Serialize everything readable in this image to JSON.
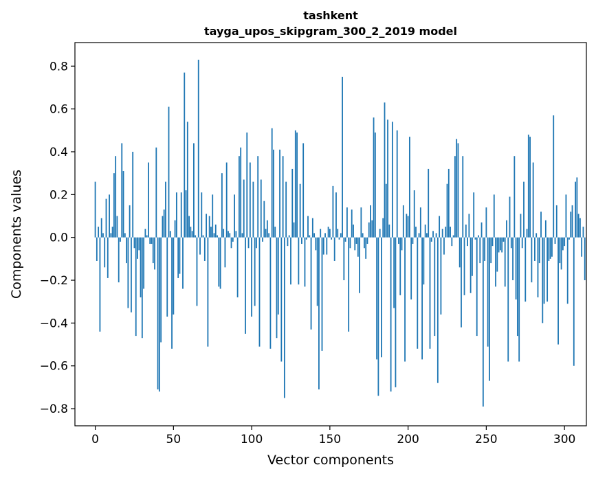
{
  "chart_data": {
    "type": "bar",
    "title": "tashkent",
    "subtitle": "tayga_upos_skipgram_300_2_2019 model",
    "xlabel": "Vector components",
    "ylabel": "Components values",
    "xlim": [
      -13,
      314
    ],
    "ylim": [
      -0.88,
      0.91
    ],
    "xticks": [
      0,
      50,
      100,
      150,
      200,
      250,
      300
    ],
    "xtick_labels": [
      "0",
      "50",
      "100",
      "150",
      "200",
      "250",
      "300"
    ],
    "yticks": [
      -0.8,
      -0.6,
      -0.4,
      -0.2,
      0.0,
      0.2,
      0.4,
      0.6,
      0.8
    ],
    "ytick_labels": [
      "−0.8",
      "−0.6",
      "−0.4",
      "−0.2",
      "0.0",
      "0.2",
      "0.4",
      "0.6",
      "0.8"
    ],
    "grid": false,
    "bar_color": "#1f77b4",
    "series": [
      {
        "values": [
          0.26,
          -0.11,
          0.05,
          -0.44,
          0.09,
          0.02,
          -0.14,
          0.18,
          -0.19,
          0.2,
          0.02,
          0.05,
          0.3,
          0.38,
          0.1,
          -0.21,
          -0.02,
          0.44,
          0.31,
          0.02,
          -0.12,
          -0.33,
          0.15,
          -0.35,
          0.4,
          -0.05,
          -0.46,
          -0.1,
          -0.06,
          -0.28,
          -0.47,
          -0.24,
          0.04,
          0.01,
          0.35,
          -0.03,
          -0.03,
          -0.12,
          -0.15,
          0.42,
          -0.71,
          -0.72,
          -0.49,
          0.1,
          0.13,
          0.26,
          -0.37,
          0.61,
          0.03,
          -0.52,
          -0.36,
          0.08,
          0.21,
          -0.19,
          -0.17,
          0.21,
          -0.24,
          0.77,
          0.22,
          0.54,
          0.1,
          0.05,
          0.03,
          0.44,
          0.01,
          -0.32,
          0.83,
          -0.08,
          0.21,
          0.01,
          -0.11,
          0.11,
          -0.51,
          0.1,
          0.05,
          0.2,
          0.02,
          0.06,
          0.01,
          -0.23,
          -0.24,
          0.3,
          0.04,
          -0.14,
          0.35,
          0.03,
          0.02,
          -0.05,
          -0.02,
          0.2,
          0.03,
          -0.28,
          0.38,
          0.42,
          0.02,
          0.27,
          -0.45,
          0.49,
          -0.05,
          0.35,
          -0.37,
          0.26,
          -0.32,
          -0.05,
          0.38,
          -0.51,
          0.27,
          -0.02,
          0.17,
          0.04,
          0.08,
          0.02,
          -0.52,
          0.51,
          0.41,
          0.05,
          -0.47,
          -0.36,
          0.41,
          -0.58,
          0.38,
          -0.75,
          0.26,
          -0.04,
          0.01,
          -0.22,
          0.32,
          0.07,
          0.5,
          0.49,
          -0.22,
          0.25,
          -0.03,
          0.44,
          -0.23,
          -0.01,
          0.1,
          0.01,
          -0.43,
          0.09,
          0.02,
          -0.06,
          -0.32,
          -0.71,
          0.04,
          -0.53,
          -0.08,
          0.02,
          -0.08,
          0.05,
          0.04,
          -0.01,
          0.24,
          -0.11,
          0.21,
          0.04,
          -0.01,
          0.02,
          0.75,
          -0.2,
          -0.02,
          0.14,
          -0.44,
          -0.05,
          0.13,
          0.06,
          -0.06,
          -0.03,
          -0.09,
          -0.26,
          0.14,
          0.02,
          -0.05,
          -0.1,
          -0.03,
          0.07,
          0.15,
          0.08,
          0.56,
          0.49,
          -0.57,
          -0.74,
          0.04,
          -0.56,
          0.09,
          0.63,
          0.25,
          0.55,
          0.06,
          -0.72,
          0.54,
          -0.33,
          -0.7,
          0.5,
          -0.03,
          -0.27,
          -0.06,
          0.15,
          -0.58,
          0.11,
          0.1,
          0.47,
          -0.29,
          -0.03,
          0.22,
          0.05,
          -0.52,
          0.02,
          0.14,
          -0.57,
          -0.22,
          0.06,
          0.02,
          0.32,
          -0.52,
          -0.02,
          0.03,
          -0.46,
          0.02,
          -0.68,
          0.1,
          -0.36,
          0.04,
          -0.08,
          0.05,
          0.25,
          0.32,
          0.05,
          -0.04,
          0.01,
          0.38,
          0.46,
          0.44,
          -0.14,
          -0.42,
          0.38,
          -0.27,
          0.06,
          -0.04,
          0.11,
          -0.26,
          -0.18,
          0.21,
          -0.01,
          -0.46,
          0.01,
          -0.12,
          0.07,
          -0.79,
          -0.11,
          0.14,
          -0.51,
          -0.67,
          -0.12,
          -0.04,
          0.2,
          -0.23,
          -0.16,
          -0.07,
          -0.06,
          -0.07,
          -0.02,
          -0.23,
          0.08,
          -0.58,
          0.19,
          -0.05,
          -0.2,
          0.38,
          -0.29,
          -0.46,
          -0.58,
          0.11,
          -0.05,
          0.26,
          -0.3,
          0.04,
          0.48,
          0.47,
          -0.21,
          0.35,
          -0.11,
          0.02,
          -0.28,
          -0.12,
          0.12,
          -0.4,
          -0.31,
          0.08,
          -0.3,
          -0.11,
          -0.1,
          -0.09,
          0.57,
          -0.03,
          0.15,
          -0.5,
          -0.12,
          -0.15,
          -0.06,
          -0.04,
          0.2,
          -0.31,
          -0.01,
          0.12,
          0.15,
          -0.6,
          0.26,
          0.28,
          0.11,
          0.09,
          -0.09,
          0.05,
          -0.2
        ]
      }
    ]
  }
}
